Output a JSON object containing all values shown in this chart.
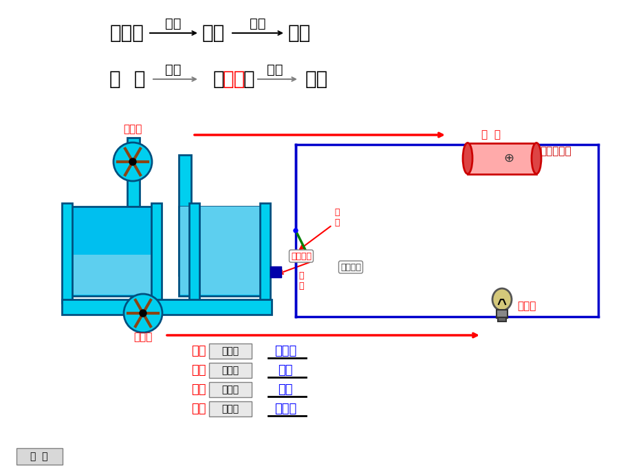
{
  "bg_color": "#ffffff",
  "title_line1": [
    "抽水机",
    "提供",
    "水压",
    "形成",
    "水流"
  ],
  "title_line2_left": [
    "电  源",
    "提供"
  ],
  "title_line2_mid": "（电压）",
  "title_line2_right": [
    "形成",
    "电流"
  ],
  "red_color": "#ff0000",
  "blue_color": "#0000ff",
  "black_color": "#000000",
  "cyan_color": "#00bfff",
  "dark_cyan": "#008b8b",
  "comparison_rows": [
    {
      "left": "电源",
      "mid": "相当于",
      "right": "抽水机"
    },
    {
      "left": "开关",
      "mid": "相当于",
      "right": "阀门"
    },
    {
      "left": "电流",
      "mid": "相当于",
      "right": "水流"
    },
    {
      "left": "灯泡",
      "mid": "相当于",
      "right": "水轮机"
    }
  ]
}
